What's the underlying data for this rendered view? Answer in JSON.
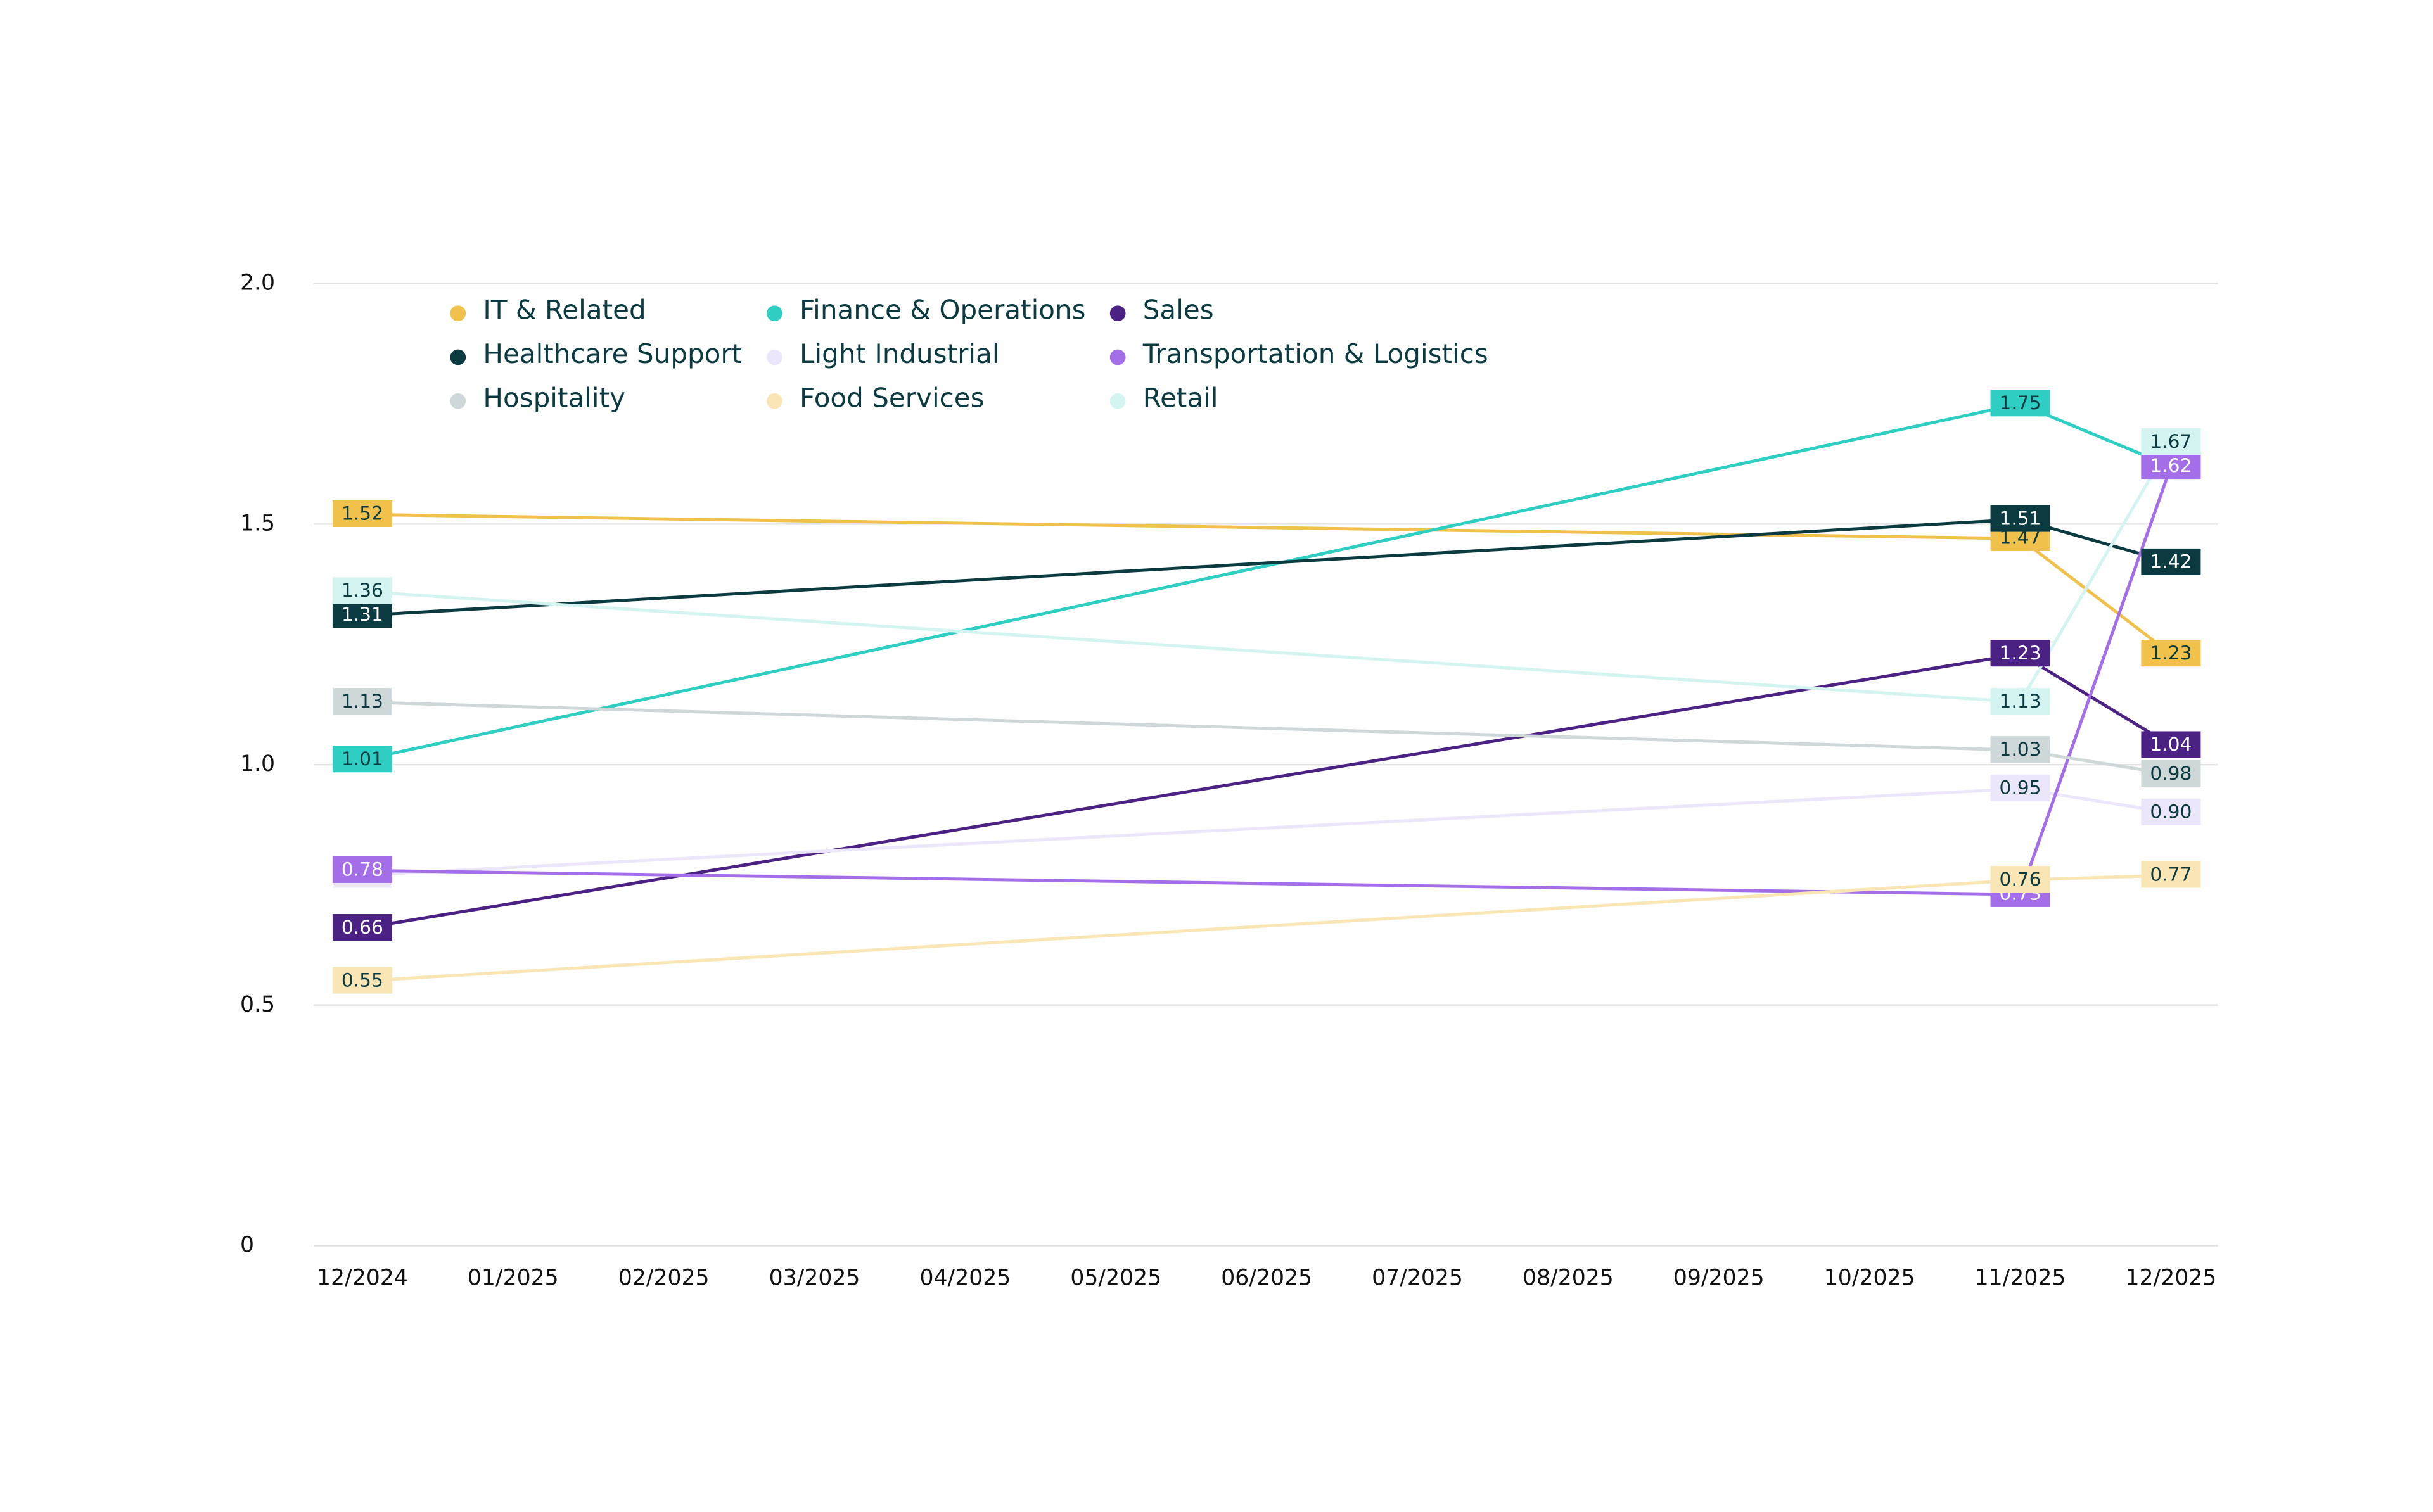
{
  "chart_data": {
    "type": "line",
    "categories": [
      "12/2024",
      "01/2025",
      "02/2025",
      "03/2025",
      "04/2025",
      "05/2025",
      "06/2025",
      "07/2025",
      "08/2025",
      "09/2025",
      "10/2025",
      "11/2025",
      "12/2025"
    ],
    "ylim": [
      0,
      2
    ],
    "yticks": [
      0,
      0.5,
      {
        "value": 1,
        "label": "1.0"
      },
      1.5,
      {
        "value": 2,
        "label": "2.0"
      }
    ],
    "grid": true,
    "series": [
      {
        "name": "IT & Related",
        "color": "#f0c14b",
        "x": [
          "12/2024",
          "11/2025",
          "12/2025"
        ],
        "values": [
          1.52,
          1.47,
          1.23
        ]
      },
      {
        "name": "Finance & Operations",
        "color": "#2ecfc2",
        "x": [
          "12/2024",
          "11/2025",
          "12/2025"
        ],
        "values": [
          1.01,
          1.75,
          1.62
        ]
      },
      {
        "name": "Sales",
        "color": "#4b2283",
        "x": [
          "12/2024",
          "11/2025",
          "12/2025"
        ],
        "values": [
          0.66,
          1.23,
          1.04
        ]
      },
      {
        "name": "Healthcare Support",
        "color": "#0b3b40",
        "x": [
          "12/2024",
          "11/2025",
          "12/2025"
        ],
        "values": [
          1.31,
          1.51,
          1.42
        ]
      },
      {
        "name": "Light Industrial",
        "color": "#ece6fb",
        "x": [
          "12/2024",
          "11/2025",
          "12/2025"
        ],
        "values": [
          0.77,
          0.95,
          0.9
        ],
        "value_labels": [
          "0.77",
          "0.95",
          "0.90"
        ]
      },
      {
        "name": "Transportation & Logistics",
        "color": "#a46ee8",
        "x": [
          "12/2024",
          "11/2025",
          "12/2025"
        ],
        "values": [
          0.78,
          0.73,
          1.62
        ]
      },
      {
        "name": "Hospitality",
        "color": "#cfd8d8",
        "x": [
          "12/2024",
          "11/2025",
          "12/2025"
        ],
        "values": [
          1.13,
          1.03,
          0.98
        ]
      },
      {
        "name": "Food Services",
        "color": "#fae6b4",
        "x": [
          "12/2024",
          "11/2025",
          "12/2025"
        ],
        "values": [
          0.55,
          0.76,
          0.77
        ]
      },
      {
        "name": "Retail",
        "color": "#d4f4f1",
        "x": [
          "12/2024",
          "11/2025",
          "12/2025"
        ],
        "values": [
          1.36,
          1.13,
          1.67
        ]
      }
    ]
  }
}
